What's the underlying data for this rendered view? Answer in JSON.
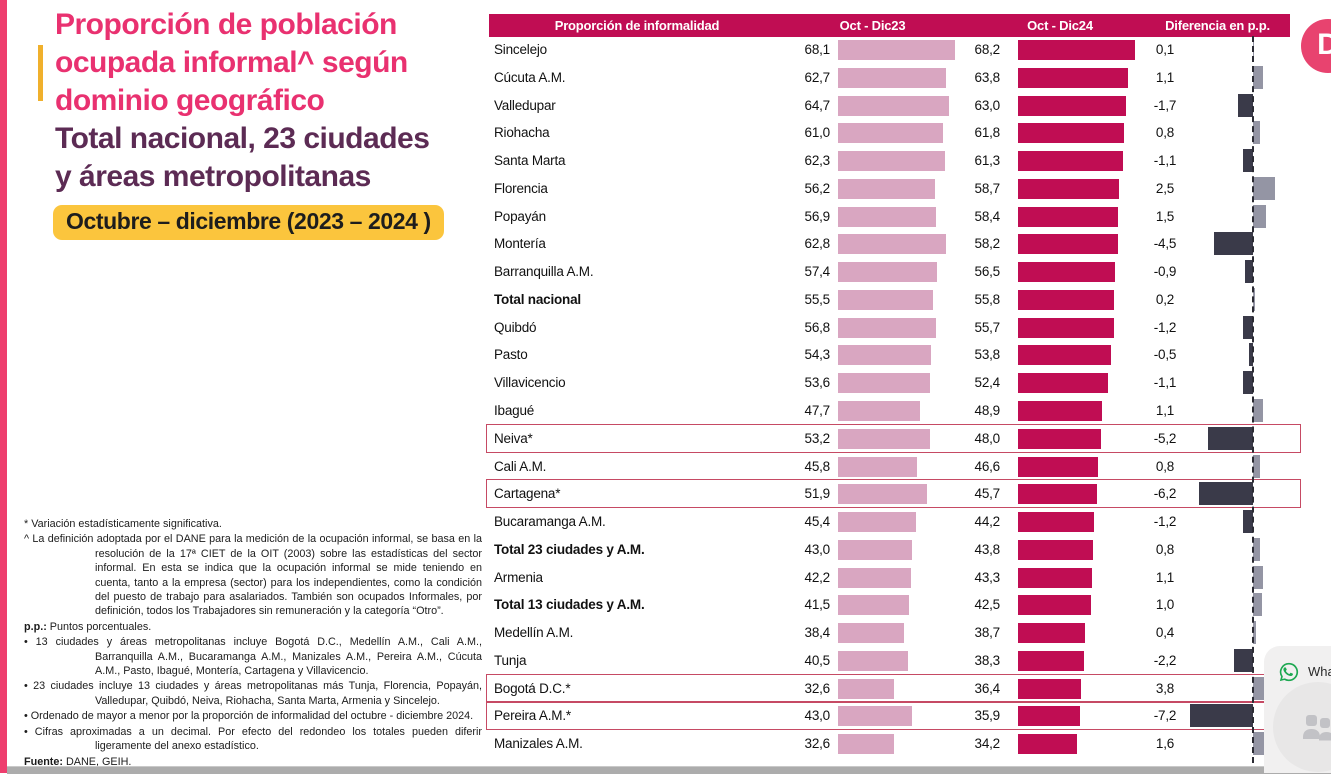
{
  "page": {
    "title_lines": [
      "Proporción de población",
      "ocupada informal^ según",
      "dominio geográfico"
    ],
    "subtitle_lines": [
      "Total nacional, 23 ciudades",
      "y áreas metropolitanas"
    ],
    "period_label": "Octubre – diciembre (2023 – 2024 )"
  },
  "colors": {
    "crimson": "#C00D53",
    "pink_bar_2023": "#D9A6C1",
    "diff_negative": "#3A3A49",
    "diff_positive": "#9495A4",
    "title_pink": "#E93170",
    "subtitle_purple": "#5C2B54",
    "accent_yellow": "#FBC53D",
    "left_strip_pink": "#EE3E6E",
    "whatsapp_green": "#1DA851",
    "highlight_border": "#C64A64"
  },
  "chart_data": {
    "type": "bar",
    "orientation": "horizontal",
    "title": "Proporción de informalidad",
    "columns": [
      "Proporción de informalidad",
      "Oct - Dic23",
      "Oct - Dic24",
      "Diferencia en p.p."
    ],
    "value_format": "comma-decimal, percent of employed population",
    "series_names": [
      "Oct - Dic23",
      "Oct - Dic24",
      "Diferencia en p.p."
    ],
    "x_axis": {
      "zero_line": "dashed vertical line in difference column",
      "range_hint": [
        0,
        70
      ]
    },
    "rows": [
      {
        "name": "Sincelejo",
        "v2023": "68,1",
        "v2024": "68,2",
        "diff": "0,1",
        "bold": false,
        "highlight": false
      },
      {
        "name": "Cúcuta A.M.",
        "v2023": "62,7",
        "v2024": "63,8",
        "diff": "1,1",
        "bold": false,
        "highlight": false
      },
      {
        "name": "Valledupar",
        "v2023": "64,7",
        "v2024": "63,0",
        "diff": "-1,7",
        "bold": false,
        "highlight": false
      },
      {
        "name": "Riohacha",
        "v2023": "61,0",
        "v2024": "61,8",
        "diff": "0,8",
        "bold": false,
        "highlight": false
      },
      {
        "name": "Santa Marta",
        "v2023": "62,3",
        "v2024": "61,3",
        "diff": "-1,1",
        "bold": false,
        "highlight": false
      },
      {
        "name": "Florencia",
        "v2023": "56,2",
        "v2024": "58,7",
        "diff": "2,5",
        "bold": false,
        "highlight": false
      },
      {
        "name": "Popayán",
        "v2023": "56,9",
        "v2024": "58,4",
        "diff": "1,5",
        "bold": false,
        "highlight": false
      },
      {
        "name": "Montería",
        "v2023": "62,8",
        "v2024": "58,2",
        "diff": "-4,5",
        "bold": false,
        "highlight": false
      },
      {
        "name": "Barranquilla A.M.",
        "v2023": "57,4",
        "v2024": "56,5",
        "diff": "-0,9",
        "bold": false,
        "highlight": false
      },
      {
        "name": "Total nacional",
        "v2023": "55,5",
        "v2024": "55,8",
        "diff": "0,2",
        "bold": true,
        "highlight": false
      },
      {
        "name": "Quibdó",
        "v2023": "56,8",
        "v2024": "55,7",
        "diff": "-1,2",
        "bold": false,
        "highlight": false
      },
      {
        "name": "Pasto",
        "v2023": "54,3",
        "v2024": "53,8",
        "diff": "-0,5",
        "bold": false,
        "highlight": false
      },
      {
        "name": "Villavicencio",
        "v2023": "53,6",
        "v2024": "52,4",
        "diff": "-1,1",
        "bold": false,
        "highlight": false
      },
      {
        "name": "Ibagué",
        "v2023": "47,7",
        "v2024": "48,9",
        "diff": "1,1",
        "bold": false,
        "highlight": false
      },
      {
        "name": "Neiva*",
        "v2023": "53,2",
        "v2024": "48,0",
        "diff": "-5,2",
        "bold": false,
        "highlight": true
      },
      {
        "name": "Cali A.M.",
        "v2023": "45,8",
        "v2024": "46,6",
        "diff": "0,8",
        "bold": false,
        "highlight": false
      },
      {
        "name": "Cartagena*",
        "v2023": "51,9",
        "v2024": "45,7",
        "diff": "-6,2",
        "bold": false,
        "highlight": true
      },
      {
        "name": "Bucaramanga A.M.",
        "v2023": "45,4",
        "v2024": "44,2",
        "diff": "-1,2",
        "bold": false,
        "highlight": false
      },
      {
        "name": "Total 23 ciudades y A.M.",
        "v2023": "43,0",
        "v2024": "43,8",
        "diff": "0,8",
        "bold": true,
        "highlight": false
      },
      {
        "name": "Armenia",
        "v2023": "42,2",
        "v2024": "43,3",
        "diff": "1,1",
        "bold": false,
        "highlight": false
      },
      {
        "name": "Total 13 ciudades y A.M.",
        "v2023": "41,5",
        "v2024": "42,5",
        "diff": "1,0",
        "bold": true,
        "highlight": false
      },
      {
        "name": "Medellín A.M.",
        "v2023": "38,4",
        "v2024": "38,7",
        "diff": "0,4",
        "bold": false,
        "highlight": false
      },
      {
        "name": "Tunja",
        "v2023": "40,5",
        "v2024": "38,3",
        "diff": "-2,2",
        "bold": false,
        "highlight": false
      },
      {
        "name": "Bogotá D.C.*",
        "v2023": "32,6",
        "v2024": "36,4",
        "diff": "3,8",
        "bold": false,
        "highlight": true
      },
      {
        "name": "Pereira A.M.*",
        "v2023": "43,0",
        "v2024": "35,9",
        "diff": "-7,2",
        "bold": false,
        "highlight": true
      },
      {
        "name": "Manizales A.M.",
        "v2023": "32,6",
        "v2024": "34,2",
        "diff": "1,6",
        "bold": false,
        "highlight": false
      }
    ]
  },
  "footnotes": [
    {
      "lead": "*",
      "lead_bold": false,
      "text": " Variación estadísticamente significativa."
    },
    {
      "lead": "^",
      "lead_bold": false,
      "text": " La definición adoptada por el DANE para la medición de la ocupación informal, se basa en la resolución de la 17ª CIET de la OIT (2003) sobre las estadísticas del sector informal. En esta se indica que la ocupación informal se mide teniendo en cuenta, tanto a la empresa (sector) para los independientes, como la condición del puesto de trabajo para asalariados. También son ocupados Informales, por definición,  todos los Trabajadores sin remuneración y la categoría “Otro”."
    },
    {
      "lead": "p.p.:",
      "lead_bold": true,
      "text": " Puntos porcentuales."
    },
    {
      "lead": "•",
      "lead_bold": false,
      "text": " 13 ciudades y áreas metropolitanas incluye Bogotá D.C., Medellín A.M., Cali A.M., Barranquilla A.M., Bucaramanga A.M., Manizales A.M., Pereira A.M., Cúcuta A.M., Pasto, Ibagué, Montería, Cartagena y Villavicencio."
    },
    {
      "lead": "•",
      "lead_bold": false,
      "text": " 23 ciudades incluye 13 ciudades y áreas metropolitanas más Tunja, Florencia, Popayán, Valledupar, Quibdó, Neiva, Riohacha, Santa Marta, Armenia y Sincelejo."
    },
    {
      "lead": "•",
      "lead_bold": false,
      "text": " Ordenado de mayor a menor por la proporción de informalidad del octubre - diciembre 2024."
    },
    {
      "lead": "•",
      "lead_bold": false,
      "text": " Cifras aproximadas a un decimal. Por efecto del redondeo los totales pueden diferir ligeramente del anexo estadístico."
    },
    {
      "lead": "Fuente:",
      "lead_bold": true,
      "text": " DANE, GEIH."
    }
  ],
  "logo": {
    "letter": "D"
  },
  "chat_widget": {
    "whatsapp_label": "Wha"
  }
}
